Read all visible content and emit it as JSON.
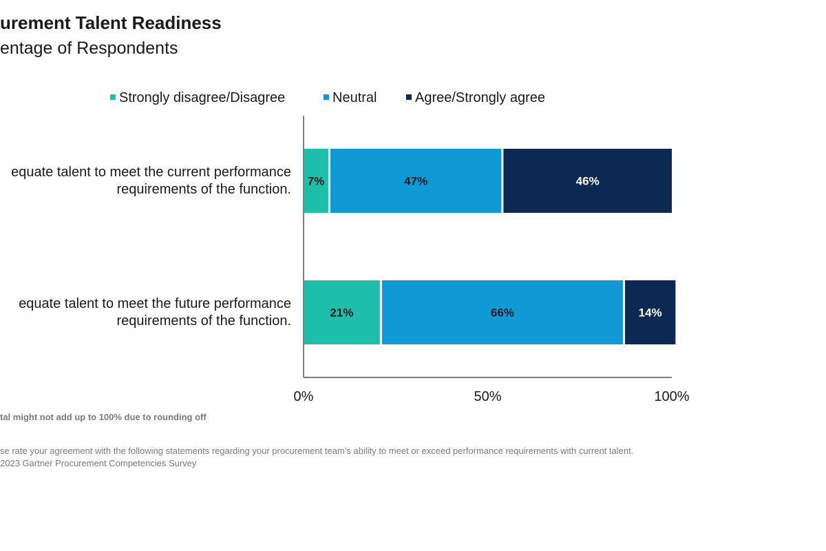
{
  "header": {
    "title": "urement Talent Readiness",
    "subtitle": "entage of Respondents"
  },
  "footnotes": {
    "note": "tal might not add up to 100% due to rounding off",
    "question": "se rate your agreement with the following statements regarding your procurement team’s ability to meet or exceed performance requirements with current talent.",
    "source": "2023 Gartner Procurement Competencies Survey"
  },
  "chart_data": {
    "type": "bar",
    "orientation": "horizontal",
    "stacked": true,
    "categories": [
      [
        "equate talent to meet the current performance",
        "requirements of the function."
      ],
      [
        "equate talent to meet the future performance",
        "requirements of the function."
      ]
    ],
    "series": [
      {
        "name": "Strongly disagree/Disagree",
        "color": "#1dbfaa",
        "values": [
          7,
          21
        ],
        "label_color": "#1a1a1a"
      },
      {
        "name": "Neutral",
        "color": "#0f9ad6",
        "values": [
          47,
          66
        ],
        "label_color": "#1a1a1a"
      },
      {
        "name": "Agree/Strongly agree",
        "color": "#0b2952",
        "values": [
          46,
          14
        ],
        "label_color": "#ffffff"
      }
    ],
    "value_suffix": "%",
    "xlim": [
      0,
      100
    ],
    "xticks": [
      0,
      50,
      100
    ],
    "xtick_labels": [
      "0%",
      "50%",
      "100%"
    ],
    "legend_position": "top",
    "grid": false
  }
}
